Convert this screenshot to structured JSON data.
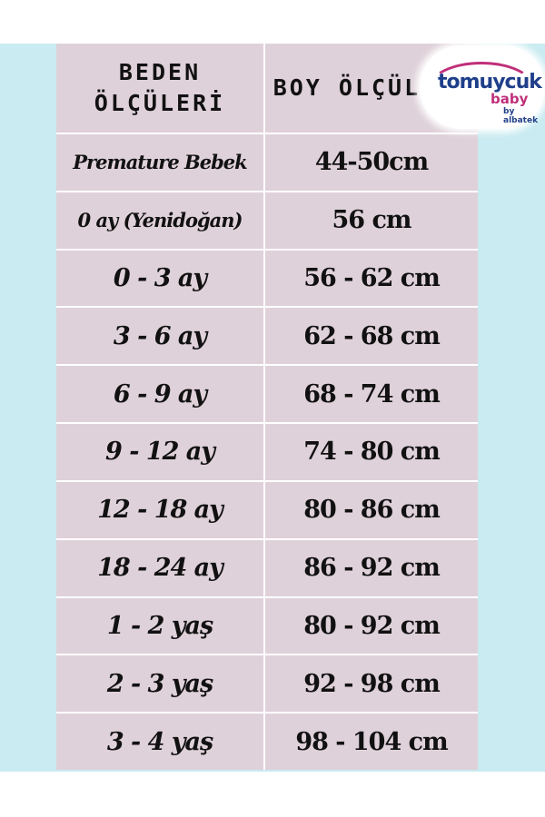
{
  "header": {
    "col1": "BEDEN ÖLÇÜLERİ",
    "col2": "BOY ÖLÇÜLERİ"
  },
  "rows": [
    {
      "size": "Premature Bebek",
      "height": "44-50cm"
    },
    {
      "size": "0 ay (Yenidoğan)",
      "height": "56 cm"
    },
    {
      "size": "0 - 3 ay",
      "height": "56 - 62 cm"
    },
    {
      "size": "3 - 6 ay",
      "height": "62 - 68 cm"
    },
    {
      "size": "6 - 9 ay",
      "height": "68 - 74 cm"
    },
    {
      "size": "9 - 12 ay",
      "height": "74 - 80 cm"
    },
    {
      "size": "12 - 18 ay",
      "height": "80 - 86 cm"
    },
    {
      "size": "18 - 24 ay",
      "height": "86 - 92 cm"
    },
    {
      "size": "1 - 2 yaş",
      "height": "80 - 92 cm"
    },
    {
      "size": "2 - 3 yaş",
      "height": "92 - 98 cm"
    },
    {
      "size": "3 - 4 yaş",
      "height": "98 - 104 cm"
    }
  ],
  "logo": {
    "brand": "tomuycuk",
    "sub": "baby",
    "by": "by albatek"
  },
  "colors": {
    "background": "#c9ebf1",
    "cell": "#dfd1d9",
    "text": "#111111"
  }
}
